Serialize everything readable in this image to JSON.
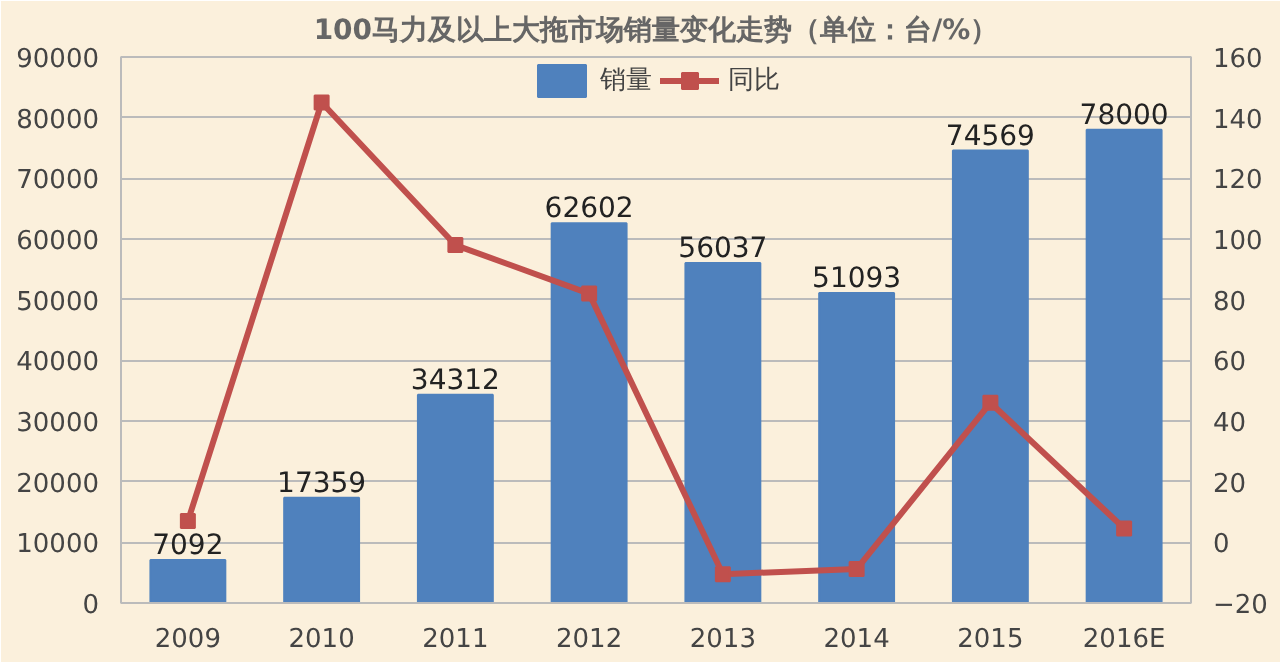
{
  "chart_data": {
    "type": "bar",
    "title": "100马力及以上大拖市场销量变化走势（单位：台/%）",
    "categories": [
      "2009",
      "2010",
      "2011",
      "2012",
      "2013",
      "2014",
      "2015",
      "2016E"
    ],
    "series": [
      {
        "name": "销量",
        "color": "#4f81bd",
        "values": [
          7092,
          17359,
          34312,
          62602,
          56037,
          51093,
          74569,
          78000
        ],
        "value_labels": [
          "7092",
          "17359",
          "34312",
          "62602",
          "56037",
          "51093",
          "74569",
          "78000"
        ]
      },
      {
        "name": "同比",
        "type": "line",
        "axis": "y2",
        "color": "#c0504d",
        "marker": "square",
        "values": [
          7,
          145,
          98,
          82,
          -10.5,
          -8.8,
          46,
          4.6
        ]
      }
    ],
    "ylim": [
      0,
      90000
    ],
    "yticks": [
      0,
      10000,
      20000,
      30000,
      40000,
      50000,
      60000,
      70000,
      80000,
      90000
    ],
    "y2lim": [
      -20,
      160
    ],
    "y2ticks": [
      -20,
      0,
      20,
      40,
      60,
      80,
      100,
      120,
      140,
      160
    ],
    "grid": "y",
    "legend": "top"
  }
}
